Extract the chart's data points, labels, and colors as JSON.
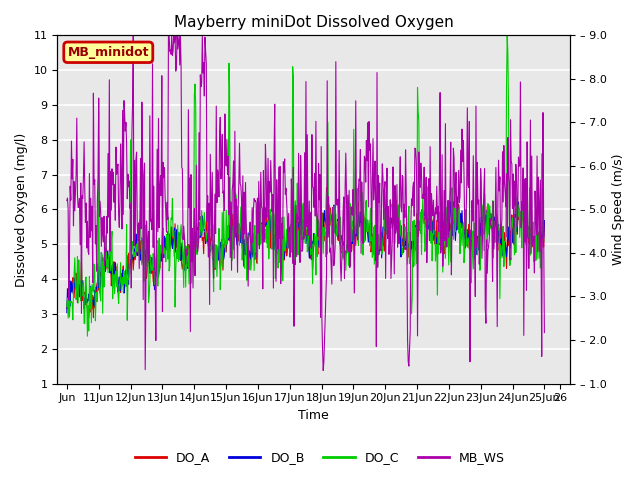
{
  "title": "Mayberry miniDot Dissolved Oxygen",
  "xlabel": "Time",
  "ylabel_left": "Dissolved Oxygen (mg/l)",
  "ylabel_right": "Wind Speed (m/s)",
  "ylim_left": [
    1.0,
    11.0
  ],
  "ylim_right": [
    1.0,
    9.0
  ],
  "yticks_left": [
    1.0,
    2.0,
    3.0,
    4.0,
    5.0,
    6.0,
    7.0,
    8.0,
    9.0,
    10.0,
    11.0
  ],
  "yticks_right": [
    1.0,
    2.0,
    3.0,
    4.0,
    5.0,
    6.0,
    7.0,
    8.0,
    9.0
  ],
  "xtick_labels": [
    "Jun",
    "11Jun",
    "12Jun",
    "13Jun",
    "14Jun",
    "15Jun",
    "16Jun",
    "17Jun",
    "18Jun",
    "19Jun",
    "20Jun",
    "21Jun",
    "22Jun",
    "23Jun",
    "24Jun",
    "25Jun",
    "26"
  ],
  "xtick_positions": [
    0,
    1,
    2,
    3,
    4,
    5,
    6,
    7,
    8,
    9,
    10,
    11,
    12,
    13,
    14,
    15,
    15.5
  ],
  "label_box_text": "MB_minidot",
  "label_box_color": "#ffff99",
  "label_box_edge_color": "#cc0000",
  "plot_bg_color": "#e8e8e8",
  "grid_color": "#ffffff",
  "legend_entries": [
    {
      "label": "DO_A",
      "color": "#dd0000"
    },
    {
      "label": "DO_B",
      "color": "#0000dd"
    },
    {
      "label": "DO_C",
      "color": "#00cc00"
    },
    {
      "label": "MB_WS",
      "color": "#aa00aa"
    }
  ],
  "line_width": 0.8,
  "title_fontsize": 11,
  "axis_label_fontsize": 9,
  "tick_fontsize": 8,
  "legend_fontsize": 9
}
